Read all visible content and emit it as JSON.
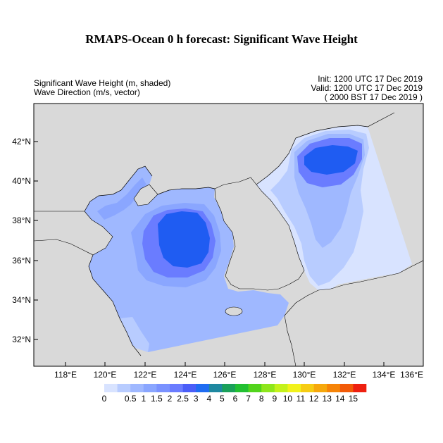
{
  "title": "RMAPS-Ocean 0 h forecast: Significant Wave Height",
  "description": {
    "line1": "Significant Wave Height (m, shaded)",
    "line2": "Wave Direction (m/s, vector)"
  },
  "times": {
    "init": "Init: 1200 UTC 17 Dec 2019",
    "valid": "Valid: 1200 UTC 17 Dec 2019",
    "local": "( 2000 BST 17 Dec 2019 )"
  },
  "axes": {
    "lon_ticks": [
      "118°E",
      "120°E",
      "122°E",
      "124°E",
      "126°E",
      "128°E",
      "130°E",
      "132°E",
      "134°E",
      "136°E"
    ],
    "lat_ticks": [
      "42°N",
      "40°N",
      "38°N",
      "36°N",
      "34°N",
      "32°N"
    ]
  },
  "colorbar": {
    "labels": [
      "0",
      "0.5",
      "1",
      "1.5",
      "2",
      "2.5",
      "3",
      "4",
      "5",
      "6",
      "7",
      "8",
      "9",
      "10",
      "11",
      "12",
      "13",
      "14",
      "15"
    ],
    "colors": [
      "#d8e3ff",
      "#b8ccff",
      "#9fb8ff",
      "#8aa6ff",
      "#7a92ff",
      "#6a7cff",
      "#4a5ef8",
      "#1f6cf2",
      "#1e88a0",
      "#1aa05a",
      "#22c032",
      "#52d41c",
      "#8ee61c",
      "#c4f21c",
      "#f2f21c",
      "#f6cc14",
      "#f6a80c",
      "#f68408",
      "#f25a08",
      "#ee2010"
    ]
  },
  "colors": {
    "land": "#d9d9d9",
    "ocean_missing": "#ffffff"
  }
}
